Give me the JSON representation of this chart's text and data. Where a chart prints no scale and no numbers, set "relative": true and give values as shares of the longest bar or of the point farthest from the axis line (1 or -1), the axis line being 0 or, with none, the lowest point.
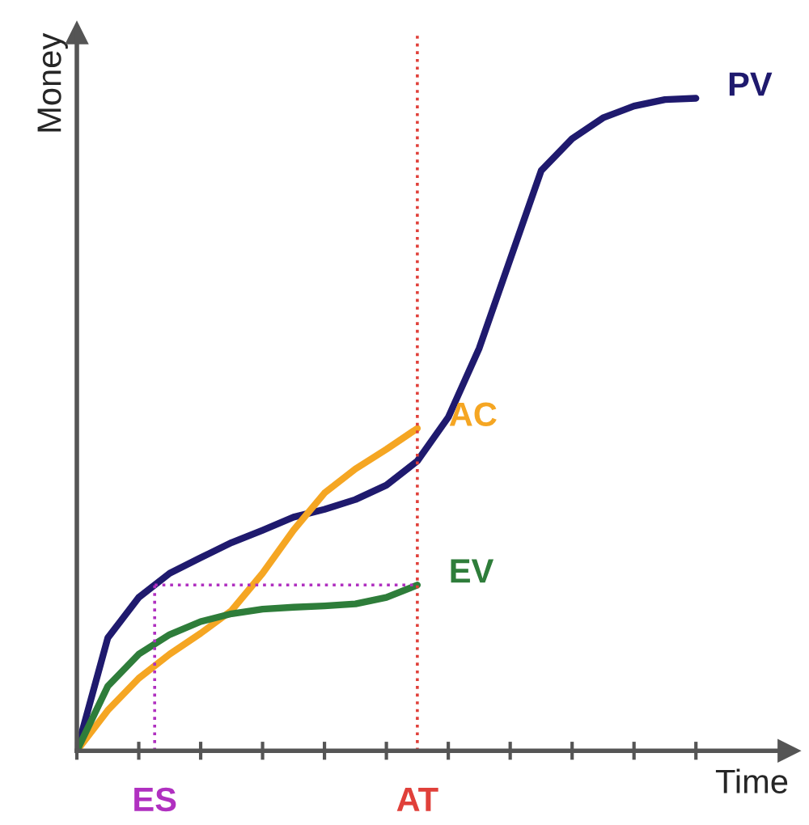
{
  "chart_data": {
    "type": "line",
    "relative": true,
    "xlabel": "Time",
    "ylabel": "Money",
    "categories": [
      null,
      null,
      null,
      null,
      null,
      null,
      null,
      null,
      null,
      null,
      null,
      null,
      null,
      null,
      null,
      null,
      null,
      null,
      null,
      null,
      null
    ],
    "series": [
      {
        "name": "PV",
        "color": "#1f1a6e",
        "values": [
          0,
          0.173,
          0.235,
          0.272,
          0.296,
          0.319,
          0.338,
          0.358,
          0.37,
          0.385,
          0.407,
          0.444,
          0.511,
          0.617,
          0.753,
          0.889,
          0.938,
          0.97,
          0.988,
          0.998,
          1
        ]
      },
      {
        "name": "AC",
        "color": "#f5a623",
        "values": [
          0,
          0.062,
          0.111,
          0.148,
          0.18,
          0.215,
          0.272,
          0.338,
          0.395,
          0.432,
          0.462,
          0.494,
          null,
          null,
          null,
          null,
          null,
          null,
          null,
          null,
          null
        ]
      },
      {
        "name": "EV",
        "color": "#2e7d3a",
        "values": [
          0,
          0.099,
          0.148,
          0.178,
          0.198,
          0.21,
          0.217,
          0.22,
          0.222,
          0.225,
          0.235,
          0.254,
          null,
          null,
          null,
          null,
          null,
          null,
          null,
          null,
          null
        ]
      }
    ],
    "annotations": [
      "ES",
      "AT"
    ],
    "grid": false,
    "marker": "none",
    "line_style": "solid",
    "tick_labels": false
  }
}
